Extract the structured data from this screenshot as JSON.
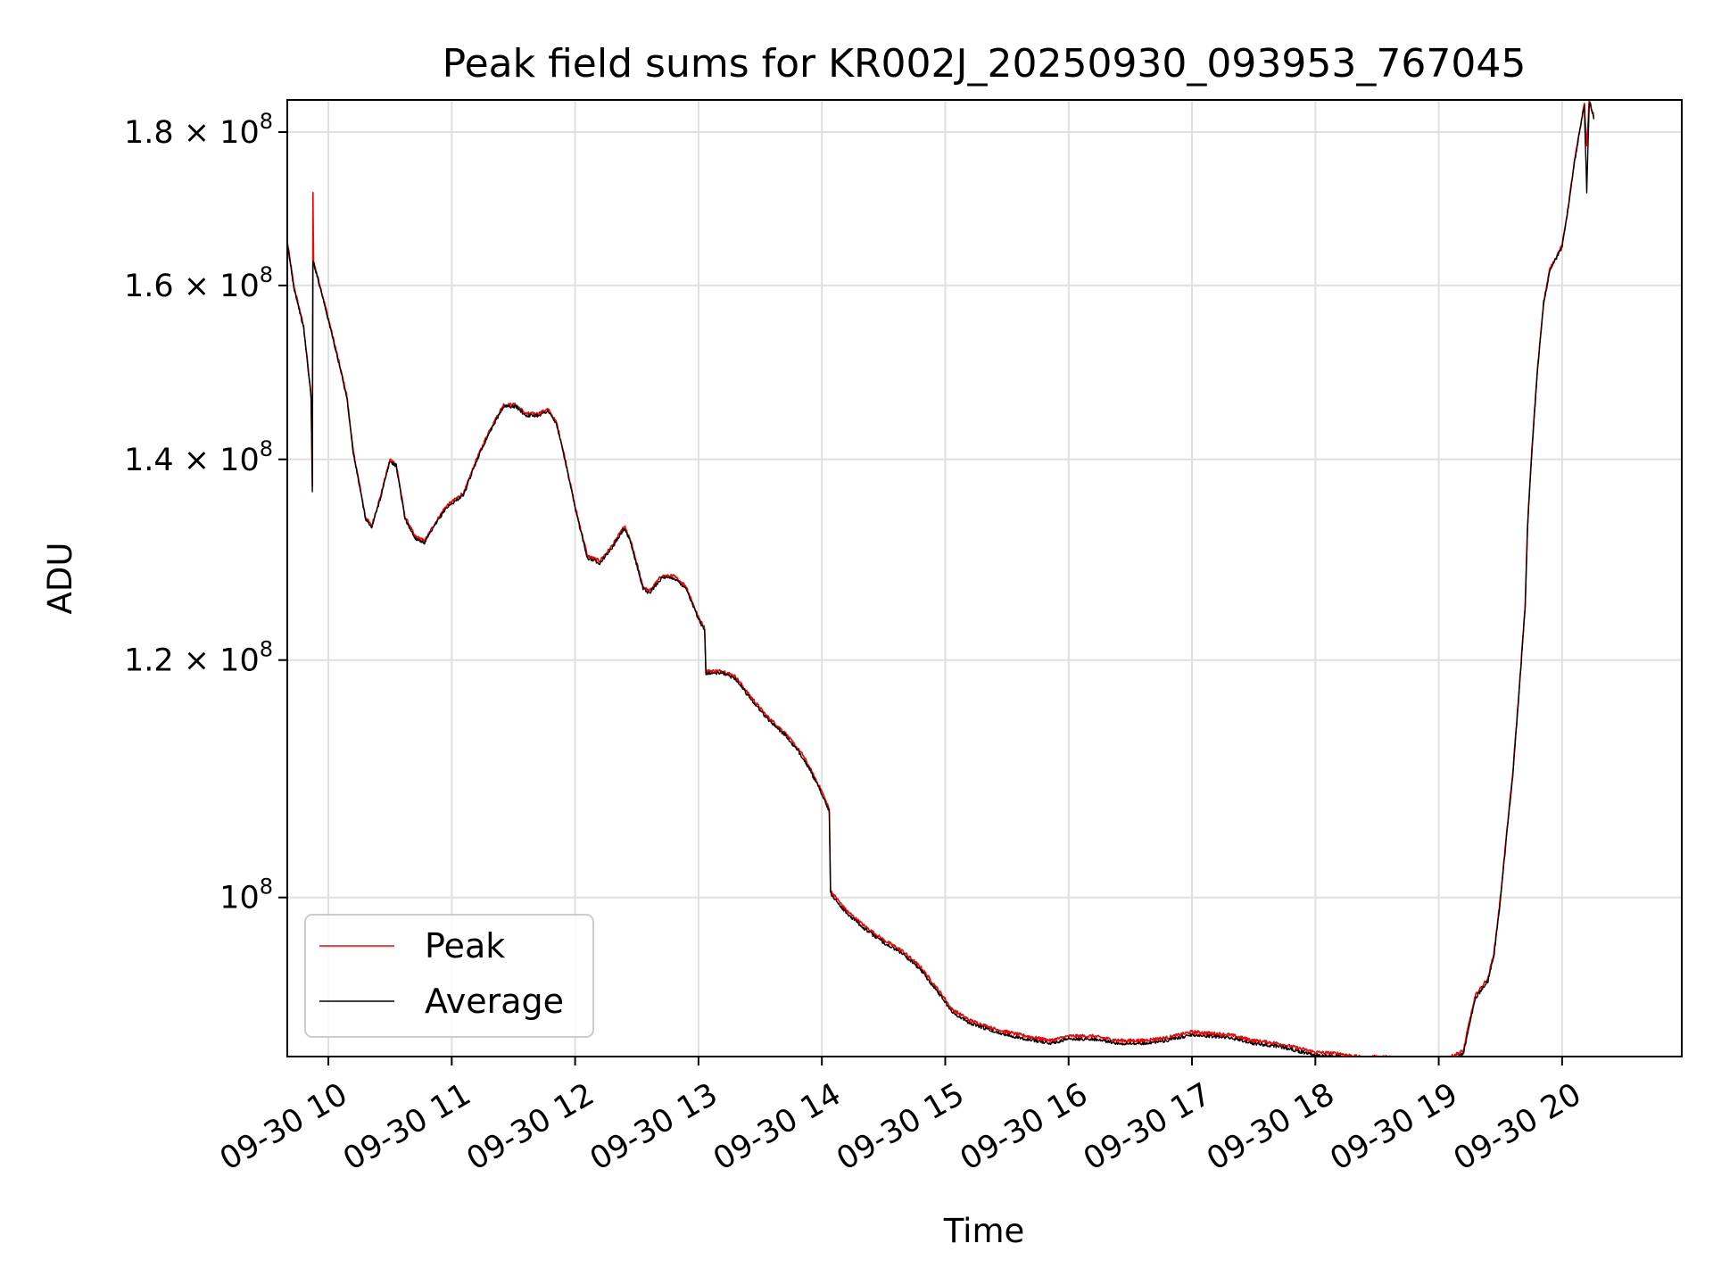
{
  "chart_data": {
    "type": "line",
    "title": "Peak field sums for KR002J_20250930_093953_767045",
    "xlabel": "Time",
    "ylabel": "ADU",
    "yscale": "log",
    "grid": true,
    "legend_position": "lower-left",
    "x_unit": "hours (Sep 30)",
    "xlim": [
      9.667,
      20.97
    ],
    "ylim": [
      88500000,
      184500000
    ],
    "x_ticks": [
      {
        "value": 10,
        "label": "09-30 10"
      },
      {
        "value": 11,
        "label": "09-30 11"
      },
      {
        "value": 12,
        "label": "09-30 12"
      },
      {
        "value": 13,
        "label": "09-30 13"
      },
      {
        "value": 14,
        "label": "09-30 14"
      },
      {
        "value": 15,
        "label": "09-30 15"
      },
      {
        "value": 16,
        "label": "09-30 16"
      },
      {
        "value": 17,
        "label": "09-30 17"
      },
      {
        "value": 18,
        "label": "09-30 18"
      },
      {
        "value": 19,
        "label": "09-30 19"
      },
      {
        "value": 20,
        "label": "09-30 20"
      }
    ],
    "y_ticks": [
      {
        "value": 100000000,
        "mantissa": "",
        "exp": "8",
        "label": "10^8"
      },
      {
        "value": 120000000,
        "mantissa": "1.2 × 10",
        "exp": "8",
        "label": "1.2 × 10^8"
      },
      {
        "value": 140000000,
        "mantissa": "1.4 × 10",
        "exp": "8",
        "label": "1.4 × 10^8"
      },
      {
        "value": 160000000,
        "mantissa": "1.6 × 10",
        "exp": "8",
        "label": "1.6 × 10^8"
      },
      {
        "value": 180000000,
        "mantissa": "1.8 × 10",
        "exp": "8",
        "label": "1.8 × 10^8"
      }
    ],
    "series": [
      {
        "name": "Peak",
        "color": "#ff0000",
        "points": [
          [
            9.667,
            165.5
          ],
          [
            9.72,
            160
          ],
          [
            9.8,
            155
          ],
          [
            9.86,
            147
          ],
          [
            9.87,
            137
          ],
          [
            9.875,
            172
          ],
          [
            9.88,
            163
          ],
          [
            9.95,
            159
          ],
          [
            10.05,
            153
          ],
          [
            10.15,
            147
          ],
          [
            10.2,
            141
          ],
          [
            10.3,
            134
          ],
          [
            10.35,
            133
          ],
          [
            10.42,
            136
          ],
          [
            10.5,
            140
          ],
          [
            10.55,
            139.5
          ],
          [
            10.62,
            134
          ],
          [
            10.7,
            132
          ],
          [
            10.78,
            131.5
          ],
          [
            10.85,
            133
          ],
          [
            10.95,
            135
          ],
          [
            11.1,
            136.5
          ],
          [
            11.2,
            140
          ],
          [
            11.3,
            143
          ],
          [
            11.42,
            146
          ],
          [
            11.52,
            146
          ],
          [
            11.6,
            145
          ],
          [
            11.7,
            145
          ],
          [
            11.78,
            145.5
          ],
          [
            11.85,
            144
          ],
          [
            11.92,
            140
          ],
          [
            12.0,
            135
          ],
          [
            12.1,
            130
          ],
          [
            12.2,
            129.5
          ],
          [
            12.3,
            131
          ],
          [
            12.4,
            133
          ],
          [
            12.45,
            131.5
          ],
          [
            12.55,
            127
          ],
          [
            12.6,
            126.5
          ],
          [
            12.7,
            128
          ],
          [
            12.8,
            128
          ],
          [
            12.9,
            127
          ],
          [
            13.0,
            124
          ],
          [
            13.05,
            123
          ],
          [
            13.06,
            119
          ],
          [
            13.2,
            119
          ],
          [
            13.3,
            118.5
          ],
          [
            13.4,
            117
          ],
          [
            13.55,
            115
          ],
          [
            13.7,
            113.5
          ],
          [
            13.85,
            111.5
          ],
          [
            14.0,
            108.5
          ],
          [
            14.06,
            107
          ],
          [
            14.07,
            100.5
          ],
          [
            14.2,
            99
          ],
          [
            14.35,
            97.8
          ],
          [
            14.5,
            96.8
          ],
          [
            14.65,
            96
          ],
          [
            14.8,
            94.8
          ],
          [
            15.0,
            92.5
          ],
          [
            15.05,
            91.8
          ],
          [
            15.2,
            91
          ],
          [
            15.4,
            90.4
          ],
          [
            15.6,
            90
          ],
          [
            15.85,
            89.6
          ],
          [
            16.0,
            89.9
          ],
          [
            16.2,
            89.9
          ],
          [
            16.4,
            89.6
          ],
          [
            16.6,
            89.6
          ],
          [
            16.8,
            89.8
          ],
          [
            17.0,
            90.2
          ],
          [
            17.3,
            90
          ],
          [
            17.5,
            89.6
          ],
          [
            17.7,
            89.4
          ],
          [
            17.9,
            89.0
          ],
          [
            18.0,
            88.8
          ],
          [
            18.2,
            88.7
          ],
          [
            18.4,
            88.4
          ],
          [
            18.5,
            88.5
          ],
          [
            18.7,
            88.4
          ],
          [
            18.9,
            88.3
          ],
          [
            19.1,
            88.5
          ],
          [
            19.2,
            88.9
          ],
          [
            19.25,
            91
          ],
          [
            19.3,
            92.8
          ],
          [
            19.4,
            94
          ],
          [
            19.45,
            96
          ],
          [
            19.5,
            100
          ],
          [
            19.55,
            105
          ],
          [
            19.6,
            110
          ],
          [
            19.65,
            117
          ],
          [
            19.7,
            125
          ],
          [
            19.72,
            133
          ],
          [
            19.75,
            140
          ],
          [
            19.8,
            150
          ],
          [
            19.85,
            158
          ],
          [
            19.9,
            162
          ],
          [
            20.0,
            165
          ],
          [
            20.05,
            170
          ],
          [
            20.1,
            176
          ],
          [
            20.15,
            181
          ],
          [
            20.18,
            184
          ],
          [
            20.2,
            178
          ],
          [
            20.22,
            184.5
          ],
          [
            20.26,
            182
          ]
        ]
      },
      {
        "name": "Average",
        "color": "#000000",
        "points": [
          [
            9.667,
            165.2
          ],
          [
            9.72,
            159.8
          ],
          [
            9.8,
            154.8
          ],
          [
            9.86,
            146.8
          ],
          [
            9.87,
            136.5
          ],
          [
            9.875,
            163
          ],
          [
            9.88,
            162.8
          ],
          [
            9.95,
            158.8
          ],
          [
            10.05,
            152.8
          ],
          [
            10.15,
            146.8
          ],
          [
            10.2,
            140.8
          ],
          [
            10.3,
            133.8
          ],
          [
            10.35,
            132.8
          ],
          [
            10.42,
            135.8
          ],
          [
            10.5,
            139.8
          ],
          [
            10.55,
            139.3
          ],
          [
            10.62,
            133.8
          ],
          [
            10.7,
            131.8
          ],
          [
            10.78,
            131.3
          ],
          [
            10.85,
            132.8
          ],
          [
            10.95,
            134.8
          ],
          [
            11.1,
            136.3
          ],
          [
            11.2,
            139.8
          ],
          [
            11.3,
            142.8
          ],
          [
            11.42,
            145.8
          ],
          [
            11.52,
            145.8
          ],
          [
            11.6,
            144.8
          ],
          [
            11.7,
            144.8
          ],
          [
            11.78,
            145.3
          ],
          [
            11.85,
            143.8
          ],
          [
            11.92,
            139.8
          ],
          [
            12.0,
            134.8
          ],
          [
            12.1,
            129.8
          ],
          [
            12.2,
            129.3
          ],
          [
            12.3,
            130.8
          ],
          [
            12.4,
            132.8
          ],
          [
            12.45,
            131.3
          ],
          [
            12.55,
            126.8
          ],
          [
            12.6,
            126.3
          ],
          [
            12.7,
            127.8
          ],
          [
            12.8,
            127.8
          ],
          [
            12.9,
            126.8
          ],
          [
            13.0,
            123.8
          ],
          [
            13.05,
            122.8
          ],
          [
            13.06,
            118.8
          ],
          [
            13.2,
            118.8
          ],
          [
            13.3,
            118.3
          ],
          [
            13.4,
            116.8
          ],
          [
            13.55,
            114.8
          ],
          [
            13.7,
            113.3
          ],
          [
            13.85,
            111.3
          ],
          [
            14.0,
            108.3
          ],
          [
            14.06,
            106.8
          ],
          [
            14.07,
            100.3
          ],
          [
            14.2,
            98.8
          ],
          [
            14.35,
            97.6
          ],
          [
            14.5,
            96.6
          ],
          [
            14.65,
            95.8
          ],
          [
            14.8,
            94.6
          ],
          [
            15.0,
            92.3
          ],
          [
            15.05,
            91.6
          ],
          [
            15.2,
            90.8
          ],
          [
            15.4,
            90.2
          ],
          [
            15.6,
            89.8
          ],
          [
            15.85,
            89.4
          ],
          [
            16.0,
            89.7
          ],
          [
            16.2,
            89.7
          ],
          [
            16.4,
            89.4
          ],
          [
            16.6,
            89.4
          ],
          [
            16.8,
            89.6
          ],
          [
            17.0,
            90.0
          ],
          [
            17.3,
            89.8
          ],
          [
            17.5,
            89.4
          ],
          [
            17.7,
            89.2
          ],
          [
            17.9,
            88.8
          ],
          [
            18.0,
            88.6
          ],
          [
            18.2,
            88.5
          ],
          [
            18.4,
            88.2
          ],
          [
            18.5,
            88.3
          ],
          [
            18.7,
            88.2
          ],
          [
            18.9,
            88.1
          ],
          [
            19.1,
            88.3
          ],
          [
            19.2,
            88.7
          ],
          [
            19.25,
            90.8
          ],
          [
            19.3,
            92.6
          ],
          [
            19.4,
            93.8
          ],
          [
            19.45,
            95.8
          ],
          [
            19.5,
            99.8
          ],
          [
            19.55,
            104.8
          ],
          [
            19.6,
            109.8
          ],
          [
            19.65,
            116.8
          ],
          [
            19.7,
            124.8
          ],
          [
            19.72,
            132.8
          ],
          [
            19.75,
            139.8
          ],
          [
            19.8,
            149.8
          ],
          [
            19.85,
            157.8
          ],
          [
            19.9,
            161.8
          ],
          [
            20.0,
            164.8
          ],
          [
            20.05,
            169.8
          ],
          [
            20.1,
            175.8
          ],
          [
            20.15,
            180.8
          ],
          [
            20.18,
            183.8
          ],
          [
            20.2,
            172
          ],
          [
            20.22,
            184.2
          ],
          [
            20.26,
            181.8
          ]
        ]
      }
    ],
    "legend": [
      {
        "name": "Peak",
        "color": "#ff0000"
      },
      {
        "name": "Average",
        "color": "#000000"
      }
    ]
  }
}
